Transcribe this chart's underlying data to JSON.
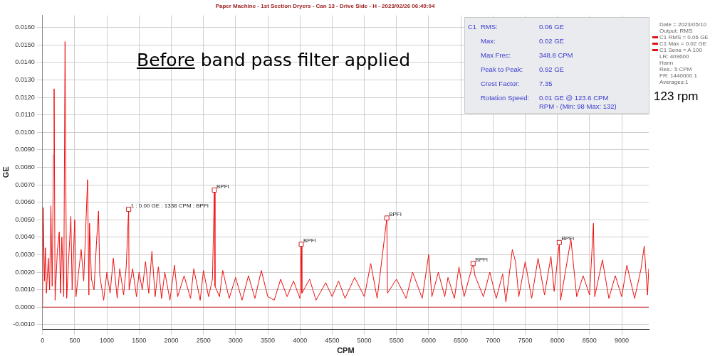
{
  "chart_data": {
    "type": "line",
    "title": "Paper Machine - 1st Section Dryers - Can 13 - Drive Side - H - 2023/02/26 06:49:04",
    "xlabel": "CPM",
    "ylabel": "GE",
    "xlim": [
      0,
      9420
    ],
    "xticks": [
      0,
      500,
      1000,
      1500,
      2000,
      2500,
      3000,
      3500,
      4000,
      4500,
      5000,
      5500,
      6000,
      6500,
      7000,
      7500,
      8000,
      8500,
      9000
    ],
    "ylim": [
      -0.00125,
      0.0167
    ],
    "yticks": [
      {
        "value": -0.001,
        "label": "-0.0010"
      },
      {
        "value": 0,
        "label": "0.0000"
      },
      {
        "value": 0.001,
        "label": "0.0010"
      },
      {
        "value": 0.002,
        "label": "0.0020"
      },
      {
        "value": 0.003,
        "label": "0.0030"
      },
      {
        "value": 0.004,
        "label": "0.0040"
      },
      {
        "value": 0.005,
        "label": "0.0050"
      },
      {
        "value": 0.006,
        "label": "0.0060"
      },
      {
        "value": 0.007,
        "label": "0.0070"
      },
      {
        "value": 0.008,
        "label": "0.0080"
      },
      {
        "value": 0.009,
        "label": "0.0090"
      },
      {
        "value": 0.01,
        "label": "0.0100"
      },
      {
        "value": 0.011,
        "label": "0.0110"
      },
      {
        "value": 0.012,
        "label": "0.0120"
      },
      {
        "value": 0.013,
        "label": "0.0130"
      },
      {
        "value": 0.014,
        "label": "0.0140"
      },
      {
        "value": 0.015,
        "label": "0.0150"
      },
      {
        "value": 0.016,
        "label": "0.0160"
      }
    ],
    "grid": true,
    "legend": false,
    "marker": "none",
    "line_style": "solid",
    "ref_lines": [
      {
        "axis": "y",
        "value": 0,
        "color": "#cc2222"
      }
    ],
    "series": [
      {
        "color": "#ee1111",
        "x": [
          0,
          10,
          30,
          45,
          60,
          90,
          110,
          130,
          150,
          170,
          180,
          195,
          230,
          260,
          280,
          300,
          330,
          350,
          360,
          375,
          410,
          440,
          460,
          500,
          520,
          560,
          600,
          640,
          700,
          720,
          730,
          760,
          800,
          840,
          870,
          890,
          950,
          1000,
          1050,
          1100,
          1160,
          1200,
          1260,
          1300,
          1338,
          1345,
          1400,
          1460,
          1500,
          1550,
          1600,
          1650,
          1700,
          1750,
          1800,
          1850,
          1900,
          1980,
          2050,
          2100,
          2200,
          2300,
          2350,
          2450,
          2500,
          2580,
          2640,
          2670,
          2680,
          2750,
          2800,
          2900,
          3000,
          3100,
          3200,
          3300,
          3400,
          3500,
          3600,
          3700,
          3800,
          3900,
          4000,
          4020,
          4030,
          4150,
          4250,
          4400,
          4500,
          4600,
          4700,
          4850,
          5000,
          5100,
          5200,
          5350,
          5360,
          5500,
          5650,
          5750,
          5900,
          6000,
          6050,
          6150,
          6250,
          6300,
          6400,
          6470,
          6550,
          6690,
          6720,
          6850,
          6950,
          7050,
          7150,
          7200,
          7300,
          7350,
          7400,
          7500,
          7600,
          7700,
          7800,
          7900,
          7950,
          8030,
          8050,
          8210,
          8300,
          8400,
          8500,
          8560,
          8580,
          8700,
          8800,
          8900,
          9000,
          9080,
          9200,
          9300,
          9350,
          9400,
          9420
        ],
        "values": [
          0.0,
          0.0057,
          0.0015,
          0.0034,
          0.0008,
          0.0028,
          0.001,
          0.0058,
          0.0012,
          0.0087,
          0.0125,
          0.0004,
          0.0032,
          0.0043,
          0.0008,
          0.004,
          0.0006,
          0.0152,
          0.008,
          0.0005,
          0.003,
          0.0052,
          0.001,
          0.005,
          0.0006,
          0.002,
          0.0033,
          0.0015,
          0.0073,
          0.0007,
          0.0048,
          0.0016,
          0.001,
          0.0038,
          0.0055,
          0.0018,
          0.0004,
          0.002,
          0.0008,
          0.0028,
          0.0005,
          0.0022,
          0.0007,
          0.0023,
          0.0056,
          0.001,
          0.0022,
          0.0006,
          0.002,
          0.001,
          0.0026,
          0.0008,
          0.0032,
          0.0006,
          0.0023,
          0.0005,
          0.002,
          0.0004,
          0.0024,
          0.0006,
          0.0018,
          0.0005,
          0.0022,
          0.0004,
          0.0021,
          0.0006,
          0.0016,
          0.0067,
          0.0012,
          0.0006,
          0.0021,
          0.0005,
          0.0017,
          0.0004,
          0.0018,
          0.0005,
          0.0021,
          0.0006,
          0.0004,
          0.0016,
          0.0006,
          0.0015,
          0.0005,
          0.0036,
          0.0008,
          0.0016,
          0.0004,
          0.0014,
          0.0006,
          0.0015,
          0.0005,
          0.0017,
          0.0006,
          0.0025,
          0.0005,
          0.0051,
          0.0008,
          0.0016,
          0.0005,
          0.002,
          0.0005,
          0.003,
          0.0006,
          0.002,
          0.0006,
          0.0017,
          0.0005,
          0.0023,
          0.0006,
          0.0025,
          0.0018,
          0.0006,
          0.002,
          0.0005,
          0.0019,
          0.0003,
          0.0033,
          0.0026,
          0.0006,
          0.0026,
          0.0005,
          0.0028,
          0.0007,
          0.0029,
          0.0009,
          0.0037,
          0.0004,
          0.0039,
          0.0006,
          0.0018,
          0.0007,
          0.0048,
          0.0006,
          0.0027,
          0.0005,
          0.0018,
          0.0006,
          0.0024,
          0.0005,
          0.0022,
          0.0035,
          0.0007,
          0.0022
        ]
      }
    ],
    "annotations": [
      "Before band pass filter applied",
      "C1",
      "RMS:",
      "0.06 GE",
      "Max:",
      "0.02 GE",
      "Max Frec:",
      "348.8 CPM",
      "Peak to Peak:",
      "0.92 GE",
      "Crest Factor:",
      "7.35",
      "Rotation Speed:",
      "0.01 GE @ 123.6 CPM",
      "RPM - (Min: 98 Max: 132)",
      "Date = 2023/05/10",
      "Output: RMS",
      "C1 RMS = 0.06 GE",
      "C1 Max = 0.02 GE",
      "C1 Sens = A 100",
      "LR: 409600",
      "Hann",
      "Res.: 5 CPM",
      "FR: 1440000 1",
      "Averages:1",
      "123 rpm",
      {
        "text": "1 : 0.00 GE : 1338 CPM : BPFI",
        "x": 1338,
        "y": 0.0056
      },
      {
        "text": "BPFI",
        "x": 2670,
        "y": 0.0067
      },
      {
        "text": "BPFI",
        "x": 4020,
        "y": 0.0036
      },
      {
        "text": "BPFI",
        "x": 5350,
        "y": 0.0051
      },
      {
        "text": "BPFI",
        "x": 6690,
        "y": 0.0025
      },
      {
        "text": "BPFI",
        "x": 8030,
        "y": 0.0037
      }
    ]
  }
}
